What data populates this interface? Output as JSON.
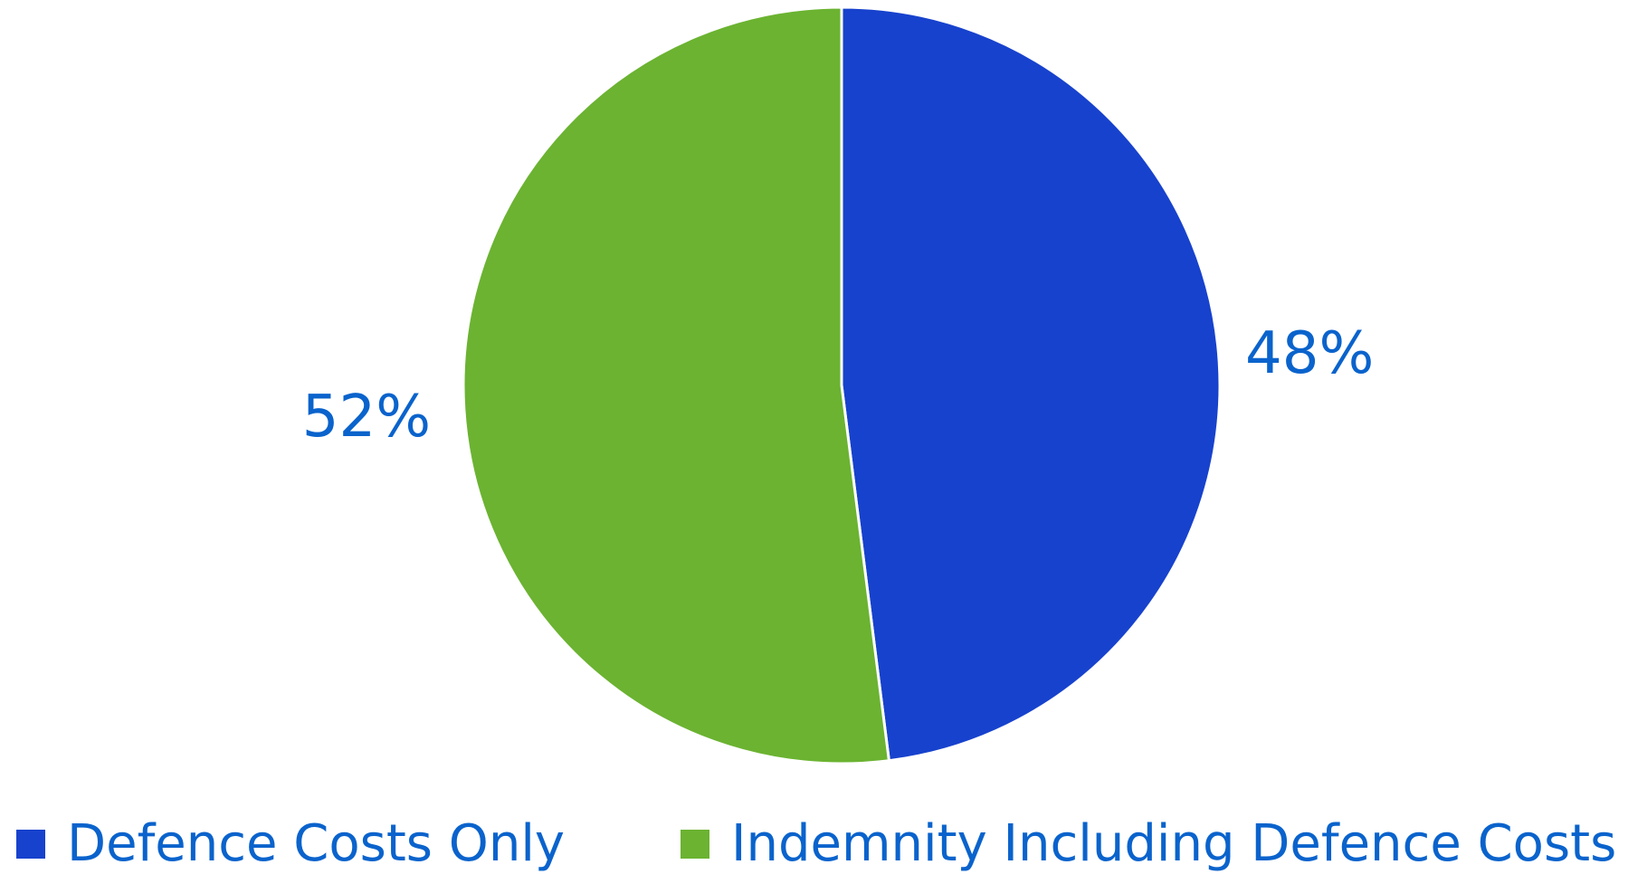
{
  "chart_data": {
    "type": "pie",
    "start_angle_deg": 0,
    "direction": "clockwise",
    "slices": [
      {
        "label": "Defence Costs Only",
        "value": 48,
        "display": "48%",
        "color": "#1742CD"
      },
      {
        "label": "Indemnity Including Defence Costs",
        "value": 52,
        "display": "52%",
        "color": "#6BB331"
      }
    ],
    "label_color": "#0A63CC",
    "legend": {
      "placement": "bottom",
      "items": [
        {
          "label": "Defence Costs Only",
          "color": "#1742CD"
        },
        {
          "label": "Indemnity Including Defence Costs",
          "color": "#6BB331"
        }
      ]
    },
    "title": "",
    "slice_border_color": "#ffffff"
  }
}
